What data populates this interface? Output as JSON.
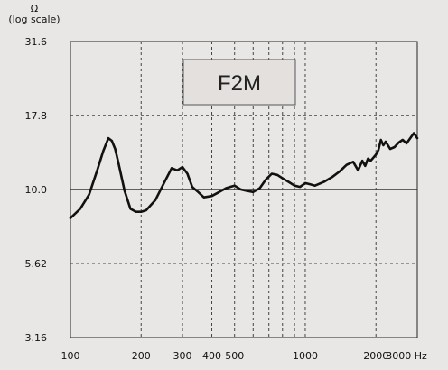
{
  "chart_data": {
    "type": "line",
    "title": "F2M",
    "ylabel": "Ω",
    "ylabel_sub": "(log scale)",
    "xunit": "Hz",
    "x_scale": "log",
    "y_scale": "log",
    "xlim": [
      100,
      3000
    ],
    "ylim": [
      3.16,
      31.6
    ],
    "yticks": [
      {
        "value": 31.6,
        "label": "31.6"
      },
      {
        "value": 17.8,
        "label": "17.8"
      },
      {
        "value": 10.0,
        "label": "10.0"
      },
      {
        "value": 5.62,
        "label": "5.62"
      },
      {
        "value": 3.16,
        "label": "3.16"
      }
    ],
    "xticks": [
      {
        "value": 100,
        "label": "100"
      },
      {
        "value": 200,
        "label": "200"
      },
      {
        "value": 300,
        "label": "300"
      },
      {
        "value": 400,
        "label": "400"
      },
      {
        "value": 500,
        "label": "500"
      },
      {
        "value": 1000,
        "label": "1000"
      },
      {
        "value": 2000,
        "label": "2000"
      },
      {
        "value": 3000,
        "label": "3000 Hz"
      }
    ],
    "grid": {
      "vertical_dashed_at": [
        200,
        300,
        400,
        500,
        600,
        700,
        800,
        900,
        1000,
        2000
      ],
      "horizontal_dashed_at": [
        17.8,
        5.62
      ],
      "horizontal_solid_at": [
        10.0
      ]
    },
    "series": [
      {
        "color": "#111111",
        "x": [
          100,
          110,
          120,
          130,
          138,
          145,
          150,
          155,
          160,
          170,
          180,
          190,
          200,
          210,
          230,
          250,
          270,
          285,
          300,
          315,
          330,
          350,
          370,
          400,
          430,
          460,
          500,
          530,
          560,
          600,
          640,
          680,
          720,
          760,
          800,
          850,
          900,
          950,
          1000,
          1050,
          1100,
          1200,
          1300,
          1400,
          1500,
          1600,
          1680,
          1750,
          1800,
          1850,
          1900,
          1950,
          2000,
          2050,
          2100,
          2150,
          2200,
          2300,
          2400,
          2500,
          2600,
          2700,
          2800,
          2900,
          3000
        ],
        "y": [
          8.0,
          8.6,
          9.6,
          11.6,
          13.5,
          14.9,
          14.6,
          13.7,
          12.3,
          9.9,
          8.6,
          8.4,
          8.4,
          8.5,
          9.2,
          10.5,
          11.8,
          11.6,
          11.9,
          11.3,
          10.2,
          9.8,
          9.4,
          9.5,
          9.8,
          10.1,
          10.3,
          10.0,
          9.9,
          9.8,
          10.1,
          10.8,
          11.3,
          11.2,
          10.9,
          10.6,
          10.3,
          10.2,
          10.5,
          10.4,
          10.3,
          10.6,
          11.0,
          11.5,
          12.1,
          12.4,
          11.6,
          12.5,
          12.0,
          12.7,
          12.5,
          12.8,
          13.1,
          13.6,
          14.7,
          14.1,
          14.5,
          13.7,
          13.9,
          14.4,
          14.7,
          14.3,
          14.9,
          15.5,
          14.9
        ]
      }
    ]
  }
}
